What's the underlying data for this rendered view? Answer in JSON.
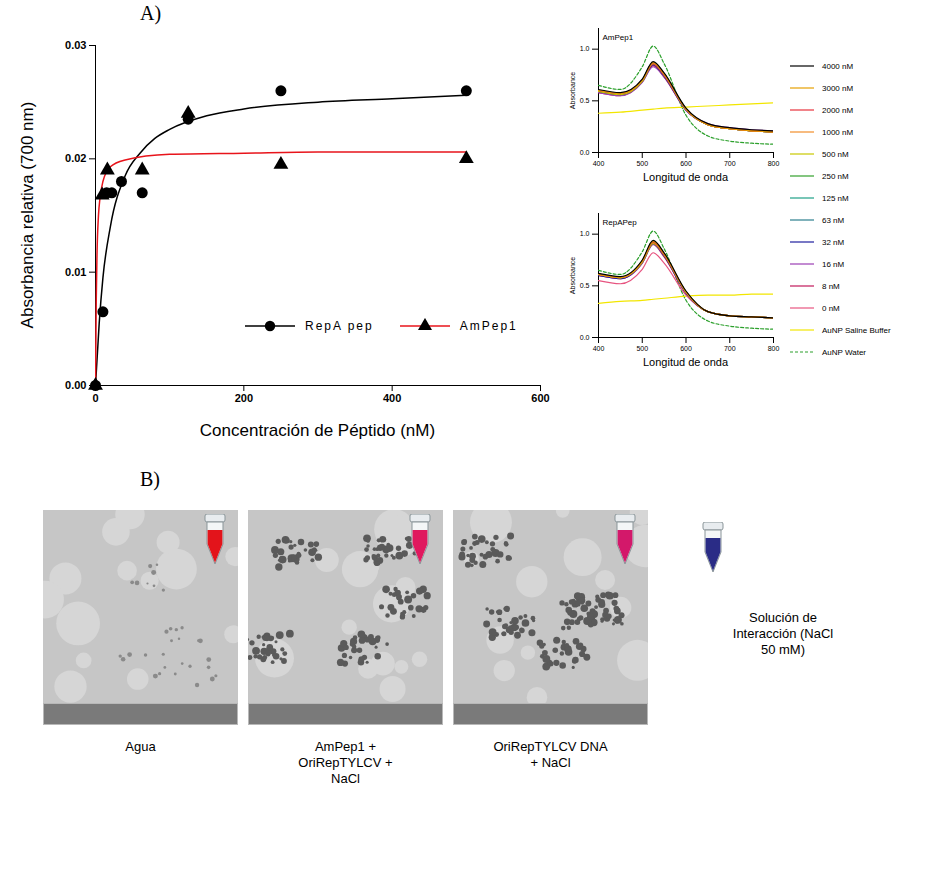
{
  "panel_labels": [
    "A)",
    "B)"
  ],
  "chart_data": [
    {
      "type": "scatter",
      "x_label": "Concentración de Péptido (nM)",
      "y_label": "Absorbancia relativa (700 nm)",
      "xlim": [
        0,
        600
      ],
      "xticks": [
        0,
        200,
        400,
        600
      ],
      "ylim": [
        0,
        0.03
      ],
      "yticks": [
        {
          "value": 0,
          "label": "0.00"
        },
        0.01,
        0.02,
        0.03
      ],
      "grid": false,
      "legend": "lower right",
      "series": [
        {
          "name": "RepA pep",
          "color": "#000000",
          "marker": "circle",
          "x": [
            0,
            10,
            15,
            22,
            35,
            63,
            125,
            250,
            500
          ],
          "values": [
            0,
            0.0065,
            0.017,
            0.017,
            0.018,
            0.017,
            0.0235,
            0.026,
            0.026
          ],
          "colors": [
            "#000000",
            "#000000",
            "#000000",
            "#000000",
            "#000000",
            "#000000",
            "#000000",
            "#000000",
            "#000000"
          ],
          "fit_x": [
            0,
            5,
            10,
            20,
            40,
            60,
            80,
            100,
            150,
            200,
            300,
            400,
            500
          ],
          "fit_values": [
            0,
            0.0055,
            0.0095,
            0.014,
            0.0185,
            0.0205,
            0.0218,
            0.0226,
            0.0238,
            0.0244,
            0.025,
            0.0253,
            0.0256
          ]
        },
        {
          "name": "AmPep1",
          "color": "#e8141b",
          "marker": "triangle",
          "x": [
            0,
            9,
            16,
            63,
            125,
            250,
            500
          ],
          "values": [
            0,
            0.0168,
            0.019,
            0.019,
            0.024,
            0.0195,
            0.02
          ],
          "colors": [
            "#000000",
            "#000000",
            "#000000",
            "#000000",
            "#000000",
            "#000000",
            "#000000"
          ],
          "fit_x": [
            0,
            1,
            2,
            4,
            6,
            10,
            20,
            40,
            100,
            200,
            300,
            500
          ],
          "fit_values": [
            0,
            0.0075,
            0.0115,
            0.015,
            0.0165,
            0.018,
            0.0193,
            0.0199,
            0.0204,
            0.0205,
            0.0206,
            0.0206
          ]
        }
      ]
    },
    {
      "type": "line",
      "panels": [
        "AmPep1",
        "RepAPep"
      ],
      "x_label": "Longitud de onda",
      "y_label": "Absorbance",
      "x": [
        400,
        450,
        500,
        525,
        550,
        600,
        650,
        700,
        750,
        800
      ],
      "xlim": [
        400,
        800
      ],
      "xticks": [
        400,
        500,
        600,
        700,
        800
      ],
      "ylim": [
        0,
        1.2
      ],
      "yticks": [
        {
          "value": 0,
          "label": "0.0"
        },
        0.5,
        {
          "value": 1,
          "label": "1.0"
        }
      ],
      "legend": "right",
      "series": [
        {
          "name": "4000 nM",
          "color": "#000000",
          "line_style": "solid",
          "values": [
            [
              0.61,
              0.58,
              0.71,
              0.88,
              0.77,
              0.43,
              0.28,
              0.24,
              0.22,
              0.21
            ],
            [
              0.62,
              0.59,
              0.75,
              0.94,
              0.82,
              0.45,
              0.25,
              0.21,
              0.2,
              0.19
            ]
          ]
        },
        {
          "name": "3000 nM",
          "color": "#e69f00",
          "line_style": "solid",
          "values": [
            [
              0.6,
              0.57,
              0.7,
              0.87,
              0.76,
              0.42,
              0.27,
              0.23,
              0.21,
              0.2
            ],
            [
              0.61,
              0.58,
              0.74,
              0.93,
              0.81,
              0.44,
              0.25,
              0.21,
              0.2,
              0.19
            ]
          ]
        },
        {
          "name": "2000 nM",
          "color": "#e8323c",
          "line_style": "solid",
          "values": [
            [
              0.6,
              0.57,
              0.7,
              0.86,
              0.75,
              0.42,
              0.27,
              0.23,
              0.21,
              0.2
            ],
            [
              0.61,
              0.58,
              0.74,
              0.92,
              0.8,
              0.44,
              0.25,
              0.21,
              0.2,
              0.19
            ]
          ]
        },
        {
          "name": "1000 nM",
          "color": "#f28e2b",
          "line_style": "solid",
          "values": [
            [
              0.6,
              0.57,
              0.7,
              0.87,
              0.76,
              0.42,
              0.27,
              0.23,
              0.21,
              0.2
            ],
            [
              0.61,
              0.58,
              0.74,
              0.93,
              0.81,
              0.44,
              0.25,
              0.21,
              0.2,
              0.19
            ]
          ]
        },
        {
          "name": "500 nM",
          "color": "#c8c800",
          "line_style": "solid",
          "values": [
            [
              0.59,
              0.56,
              0.69,
              0.86,
              0.75,
              0.42,
              0.27,
              0.23,
              0.21,
              0.2
            ],
            [
              0.61,
              0.58,
              0.73,
              0.91,
              0.8,
              0.44,
              0.25,
              0.21,
              0.2,
              0.19
            ]
          ]
        },
        {
          "name": "250 nM",
          "color": "#33a02c",
          "line_style": "solid",
          "values": [
            [
              0.59,
              0.56,
              0.69,
              0.86,
              0.75,
              0.42,
              0.27,
              0.23,
              0.21,
              0.2
            ],
            [
              0.61,
              0.58,
              0.73,
              0.91,
              0.8,
              0.44,
              0.25,
              0.21,
              0.2,
              0.19
            ]
          ]
        },
        {
          "name": "125 nM",
          "color": "#1fa187",
          "line_style": "solid",
          "values": [
            [
              0.6,
              0.57,
              0.7,
              0.87,
              0.76,
              0.42,
              0.27,
              0.23,
              0.21,
              0.2
            ],
            [
              0.61,
              0.58,
              0.74,
              0.92,
              0.8,
              0.44,
              0.25,
              0.21,
              0.2,
              0.19
            ]
          ]
        },
        {
          "name": "63 nM",
          "color": "#2c7f8e",
          "line_style": "solid",
          "values": [
            [
              0.6,
              0.57,
              0.7,
              0.87,
              0.76,
              0.42,
              0.27,
              0.23,
              0.21,
              0.2
            ],
            [
              0.61,
              0.58,
              0.74,
              0.92,
              0.8,
              0.44,
              0.25,
              0.21,
              0.2,
              0.19
            ]
          ]
        },
        {
          "name": "32 nM",
          "color": "#1f1f9f",
          "line_style": "solid",
          "values": [
            [
              0.59,
              0.56,
              0.69,
              0.85,
              0.74,
              0.41,
              0.27,
              0.23,
              0.21,
              0.2
            ],
            [
              0.6,
              0.57,
              0.73,
              0.91,
              0.79,
              0.43,
              0.25,
              0.21,
              0.2,
              0.19
            ]
          ]
        },
        {
          "name": "16 nM",
          "color": "#9b3fb5",
          "line_style": "solid",
          "values": [
            [
              0.58,
              0.55,
              0.68,
              0.83,
              0.73,
              0.41,
              0.28,
              0.24,
              0.22,
              0.21
            ],
            [
              0.6,
              0.57,
              0.72,
              0.9,
              0.79,
              0.43,
              0.25,
              0.21,
              0.2,
              0.19
            ]
          ]
        },
        {
          "name": "8 nM",
          "color": "#c2185b",
          "line_style": "solid",
          "values": [
            [
              0.58,
              0.55,
              0.68,
              0.84,
              0.73,
              0.41,
              0.27,
              0.23,
              0.21,
              0.2
            ],
            [
              0.6,
              0.57,
              0.72,
              0.9,
              0.78,
              0.43,
              0.25,
              0.21,
              0.2,
              0.19
            ]
          ]
        },
        {
          "name": "0 nM",
          "color": "#e75480",
          "line_style": "solid",
          "values": [
            [
              0.59,
              0.56,
              0.69,
              0.85,
              0.74,
              0.41,
              0.27,
              0.23,
              0.21,
              0.2
            ],
            [
              0.55,
              0.52,
              0.66,
              0.82,
              0.72,
              0.41,
              0.25,
              0.21,
              0.2,
              0.19
            ]
          ]
        },
        {
          "name": "AuNP Saline Buffer",
          "color": "#f2e600",
          "line_style": "solid",
          "values": [
            [
              0.38,
              0.39,
              0.41,
              0.42,
              0.43,
              0.44,
              0.45,
              0.46,
              0.47,
              0.48
            ],
            [
              0.33,
              0.35,
              0.36,
              0.37,
              0.38,
              0.4,
              0.41,
              0.41,
              0.42,
              0.42
            ]
          ]
        },
        {
          "name": "AuNP Water",
          "color": "#2ca02c",
          "line_style": "dashed",
          "values": [
            [
              0.65,
              0.61,
              0.83,
              1.03,
              0.86,
              0.36,
              0.16,
              0.11,
              0.09,
              0.08
            ],
            [
              0.65,
              0.61,
              0.83,
              1.03,
              0.86,
              0.36,
              0.16,
              0.11,
              0.09,
              0.08
            ]
          ]
        }
      ]
    }
  ],
  "panel_b": {
    "images": [
      {
        "caption": "Agua",
        "color": "#e3141b"
      },
      {
        "caption": "AmPep1 + OriRepTYLCV + NaCl",
        "color": "#e0195e"
      },
      {
        "caption": "OriRepTYLCV DNA + NaCl",
        "color": "#d3186a"
      }
    ],
    "tube": {
      "caption": "Solución de Interacción (NaCl 50 mM)",
      "color": "#2a2c86"
    }
  }
}
